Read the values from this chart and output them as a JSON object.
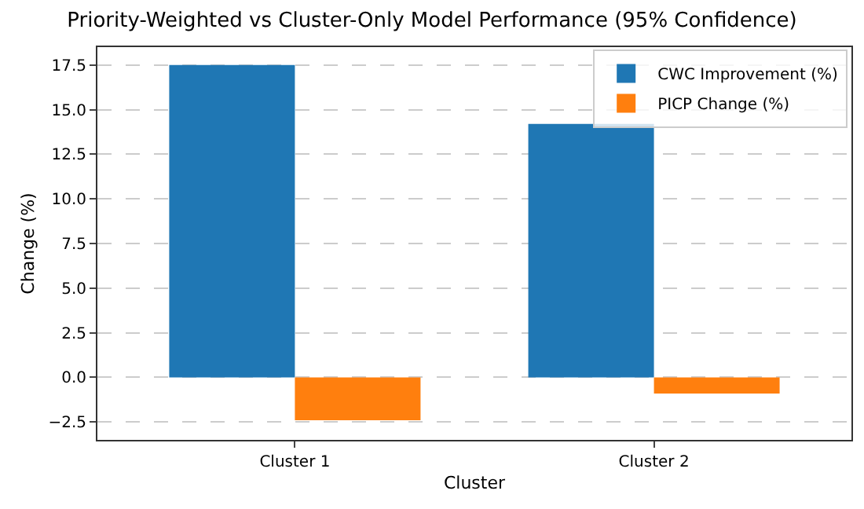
{
  "chart_data": {
    "type": "bar",
    "title": "Priority-Weighted vs Cluster-Only Model Performance (95% Confidence)",
    "xlabel": "Cluster",
    "ylabel": "Change (%)",
    "categories": [
      "Cluster 1",
      "Cluster 2"
    ],
    "series": [
      {
        "name": "CWC Improvement (%)",
        "color": "#1f77b4",
        "values": [
          17.5,
          14.2
        ]
      },
      {
        "name": "PICP Change (%)",
        "color": "#ff7f0e",
        "values": [
          -2.4,
          -0.9
        ]
      }
    ],
    "ylim": [
      -3.5,
      18.5
    ],
    "yticks": [
      {
        "value": -2.5,
        "label": "−2.5"
      },
      {
        "value": 0,
        "label": "0.0"
      },
      {
        "value": 2.5,
        "label": "2.5"
      },
      {
        "value": 5,
        "label": "5.0"
      },
      {
        "value": 7.5,
        "label": "7.5"
      },
      {
        "value": 10,
        "label": "10.0"
      },
      {
        "value": 12.5,
        "label": "12.5"
      },
      {
        "value": 15,
        "label": "15.0"
      },
      {
        "value": 17.5,
        "label": "17.5"
      }
    ],
    "grid": "y",
    "legend": "top right"
  }
}
